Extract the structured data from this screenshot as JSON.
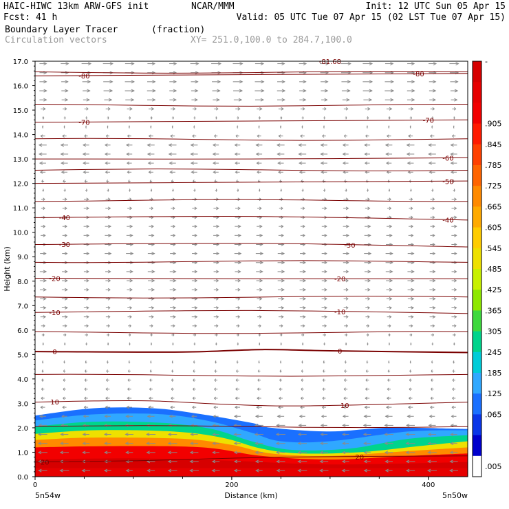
{
  "header": {
    "title_left": "HAIC-HIWC 13km ARW-GFS init",
    "org": "NCAR/MMM",
    "init": "Init: 12 UTC Sun 05 Apr 15",
    "fcst": "Fcst:   41 h",
    "valid": "Valid: 05 UTC Tue 07 Apr 15 (02 LST Tue 07 Apr 15)",
    "field": "Boundary Layer Tracer",
    "units": "(fraction)",
    "vectors": "Circulation vectors",
    "xy": "XY= 251.0,100.0 to 284.7,100.0"
  },
  "chart_data": {
    "type": "heatmap",
    "xlabel": "Distance (km)",
    "ylabel": "Height (km)",
    "xlim": [
      0,
      440
    ],
    "ylim": [
      0,
      17
    ],
    "x_ticks": [
      "0",
      "200",
      "400"
    ],
    "y_ticks": [
      "0.0",
      "1.0",
      "2.0",
      "3.0",
      "4.0",
      "5.0",
      "6.0",
      "7.0",
      "8.0",
      "9.0",
      "10.0",
      "11.0",
      "12.0",
      "13.0",
      "14.0",
      "15.0",
      "16.0",
      "17.0"
    ],
    "endpoints": {
      "left": "5n54w",
      "right": "5n50w"
    },
    "colorbar": {
      "labels": [
        "-",
        ".905",
        ".845",
        ".785",
        ".725",
        ".665",
        ".605",
        ".545",
        ".485",
        ".425",
        ".365",
        ".305",
        ".245",
        ".185",
        ".125",
        ".065",
        ".005"
      ],
      "colors": [
        "#d60000",
        "#e60000",
        "#f20000",
        "#ff1a00",
        "#ff4000",
        "#ff6400",
        "#ff8a00",
        "#ffaa00",
        "#ffcc00",
        "#eee000",
        "#c8f000",
        "#8ee800",
        "#3ed93e",
        "#00d48c",
        "#00ccd8",
        "#30a8ff",
        "#1a70ff",
        "#0a36e8",
        "#0000cc",
        "#ffffff"
      ]
    },
    "tracer_layers": [
      {
        "level": 0.005,
        "top_km": [
          [
            0,
            2.75
          ],
          [
            20,
            3.0
          ],
          [
            80,
            3.1
          ],
          [
            95,
            3.4
          ],
          [
            170,
            3.35
          ],
          [
            200,
            3.0
          ],
          [
            230,
            2.7
          ],
          [
            280,
            2.6
          ],
          [
            320,
            2.6
          ],
          [
            350,
            2.85
          ],
          [
            390,
            2.85
          ],
          [
            420,
            2.4
          ],
          [
            440,
            2.3
          ]
        ]
      },
      {
        "level": 0.125,
        "top_km": [
          [
            0,
            2.5
          ],
          [
            60,
            2.8
          ],
          [
            120,
            2.8
          ],
          [
            170,
            2.55
          ],
          [
            220,
            2.2
          ],
          [
            240,
            2.0
          ],
          [
            300,
            1.85
          ],
          [
            360,
            2.0
          ],
          [
            440,
            1.95
          ]
        ]
      },
      {
        "level": 0.185,
        "top_km": [
          [
            0,
            2.3
          ],
          [
            60,
            2.55
          ],
          [
            130,
            2.55
          ],
          [
            180,
            2.25
          ],
          [
            220,
            1.8
          ],
          [
            250,
            1.45
          ],
          [
            300,
            1.45
          ],
          [
            380,
            1.85
          ],
          [
            440,
            1.9
          ]
        ]
      },
      {
        "level": 0.305,
        "top_km": [
          [
            0,
            2.05
          ],
          [
            60,
            2.25
          ],
          [
            130,
            2.2
          ],
          [
            180,
            1.95
          ],
          [
            220,
            1.45
          ],
          [
            260,
            1.1
          ],
          [
            320,
            1.15
          ],
          [
            380,
            1.55
          ],
          [
            440,
            1.7
          ]
        ]
      },
      {
        "level": 0.485,
        "top_km": [
          [
            0,
            1.75
          ],
          [
            60,
            1.9
          ],
          [
            140,
            1.85
          ],
          [
            190,
            1.6
          ],
          [
            230,
            1.15
          ],
          [
            270,
            0.95
          ],
          [
            330,
            1.0
          ],
          [
            390,
            1.25
          ],
          [
            440,
            1.45
          ]
        ]
      },
      {
        "level": 0.665,
        "top_km": [
          [
            0,
            1.5
          ],
          [
            60,
            1.6
          ],
          [
            150,
            1.55
          ],
          [
            200,
            1.3
          ],
          [
            240,
            0.95
          ],
          [
            300,
            0.85
          ],
          [
            380,
            1.05
          ],
          [
            440,
            1.2
          ]
        ]
      },
      {
        "level": 0.845,
        "top_km": [
          [
            0,
            1.2
          ],
          [
            80,
            1.25
          ],
          [
            170,
            1.2
          ],
          [
            230,
            0.85
          ],
          [
            300,
            0.7
          ],
          [
            380,
            0.85
          ],
          [
            440,
            0.95
          ]
        ]
      },
      {
        "level": 0.965,
        "top_km": [
          [
            0,
            0.7
          ],
          [
            100,
            0.75
          ],
          [
            200,
            0.65
          ],
          [
            300,
            0.5
          ],
          [
            440,
            0.6
          ]
        ]
      }
    ],
    "temperature_contours_degC": [
      {
        "value": 20,
        "label": "20",
        "label_x": [
          10,
          330
        ],
        "y_km": [
          [
            0,
            0.6
          ],
          [
            100,
            0.65
          ],
          [
            250,
            0.8
          ],
          [
            440,
            0.85
          ]
        ]
      },
      {
        "value": 10,
        "label": "10",
        "label_x": [
          20,
          315
        ],
        "y_km": [
          [
            0,
            3.05
          ],
          [
            60,
            3.1
          ],
          [
            120,
            3.1
          ],
          [
            200,
            2.95
          ],
          [
            280,
            2.9
          ],
          [
            440,
            3.05
          ]
        ]
      },
      {
        "value": 0,
        "label": "0",
        "label_x": [
          20,
          310
        ],
        "y_km": [
          [
            0,
            5.12
          ],
          [
            150,
            5.1
          ],
          [
            230,
            5.2
          ],
          [
            300,
            5.15
          ],
          [
            440,
            5.08
          ]
        ]
      },
      {
        "value": -10,
        "label": "-10",
        "label_x": [
          20,
          310
        ],
        "y_km": [
          [
            0,
            6.72
          ],
          [
            220,
            6.8
          ],
          [
            440,
            6.68
          ]
        ]
      },
      {
        "value": -20,
        "label": "-20",
        "label_x": [
          20,
          310
        ],
        "y_km": [
          [
            0,
            8.12
          ],
          [
            220,
            8.1
          ],
          [
            440,
            8.1
          ]
        ]
      },
      {
        "value": -30,
        "label": "-30",
        "label_x": [
          30,
          320
        ],
        "y_km": [
          [
            0,
            9.5
          ],
          [
            220,
            9.55
          ],
          [
            440,
            9.4
          ]
        ]
      },
      {
        "value": -40,
        "label": "-40",
        "label_x": [
          30,
          420
        ],
        "y_km": [
          [
            0,
            10.6
          ],
          [
            220,
            10.65
          ],
          [
            440,
            10.5
          ]
        ]
      },
      {
        "value": -50,
        "label": "-50",
        "label_x": [
          420
        ],
        "y_km": [
          [
            0,
            12.0
          ],
          [
            220,
            12.05
          ],
          [
            440,
            12.1
          ]
        ]
      },
      {
        "value": -60,
        "label": "-60",
        "label_x": [
          420
        ],
        "y_km": [
          [
            0,
            13.0
          ],
          [
            220,
            13.0
          ],
          [
            440,
            13.05
          ]
        ]
      },
      {
        "value": -70,
        "label": "-70",
        "label_x": [
          50,
          400
        ],
        "y_km": [
          [
            0,
            14.5
          ],
          [
            220,
            14.55
          ],
          [
            440,
            14.6
          ]
        ]
      },
      {
        "value": -80,
        "label": "-80",
        "label_x": [
          50,
          390
        ],
        "y_km": [
          [
            0,
            16.4
          ],
          [
            220,
            16.45
          ],
          [
            440,
            16.5
          ]
        ]
      }
    ],
    "extra_contours_y_km": [
      2.05,
      4.15,
      5.9,
      7.35,
      8.8,
      11.3,
      12.55,
      13.8,
      15.2,
      16.55
    ],
    "top_label": {
      "text": "-81.68",
      "x": 300,
      "y_km": 17.0
    },
    "vectors": {
      "color": "#8a8a8a",
      "x_spacing_km": 22,
      "y_spacing_km": 0.37,
      "profile": [
        {
          "y_km": 0.2,
          "u": -1.0,
          "w": 0.0
        },
        {
          "y_km": 2.0,
          "u": -1.0,
          "w": 0.0
        },
        {
          "y_km": 3.0,
          "u": -0.5,
          "w": 0.0
        },
        {
          "y_km": 4.5,
          "u": -0.25,
          "w": 0.0
        },
        {
          "y_km": 6.5,
          "u": 0.6,
          "w": 0.0
        },
        {
          "y_km": 9.0,
          "u": 0.8,
          "w": 0.0
        },
        {
          "y_km": 11.5,
          "u": 0.5,
          "w": 0.0
        },
        {
          "y_km": 12.3,
          "u": -0.6,
          "w": 0.0
        },
        {
          "y_km": 13.5,
          "u": -0.9,
          "w": 0.0
        },
        {
          "y_km": 15.5,
          "u": 1.0,
          "w": 0.0
        },
        {
          "y_km": 16.9,
          "u": 1.1,
          "w": 0.0
        }
      ]
    }
  }
}
